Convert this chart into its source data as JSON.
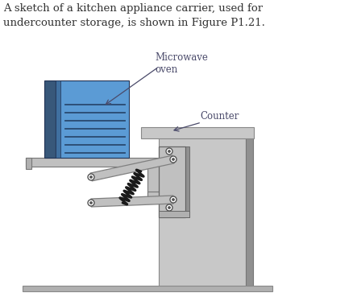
{
  "title_text": "A sketch of a kitchen appliance carrier, used for\nundercounter storage, is shown in Figure P1.21.",
  "label_microwave": "Microwave\noven",
  "label_counter": "Counter",
  "bg_color": "#ffffff",
  "text_color": "#4a4a6a",
  "wall_color": "#c8c8c8",
  "wall_dark": "#909090",
  "shelf_color": "#c0c0c0",
  "oven_blue": "#5b9bd5",
  "oven_dark": "#4070a0",
  "oven_side": "#38587a",
  "arm_color": "#c0c0c0",
  "arm_edge": "#808080",
  "spring_color": "#1a1a1a",
  "bracket_color": "#b8b8b8",
  "bracket_dark": "#888888",
  "pivot_color": "#555555",
  "counter_color": "#c8c8c8"
}
